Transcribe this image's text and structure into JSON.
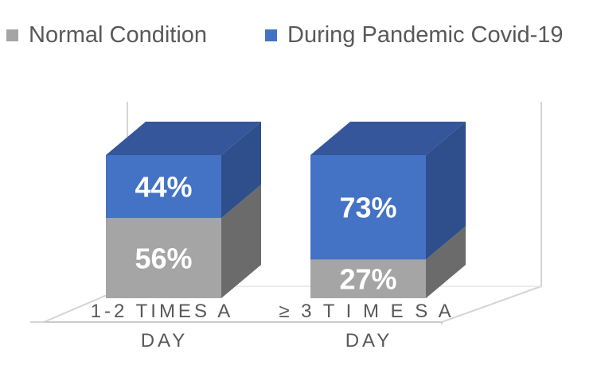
{
  "chart_data": {
    "type": "bar",
    "stacked": true,
    "percent_stacked": true,
    "three_d": true,
    "categories": [
      {
        "line1": "1-2 TIMES A",
        "line2": "DAY"
      },
      {
        "line1": "≥ 3 T I M E S A",
        "line2": "DAY"
      }
    ],
    "series": [
      {
        "name": "Normal Condition",
        "color": "#a5a5a5",
        "side_color": "#6b6b6b",
        "top_color": "#8c8c8c",
        "values": [
          56,
          27
        ],
        "labels": [
          "56%",
          "27%"
        ]
      },
      {
        "name": "During Pandemic Covid-19",
        "color": "#4472c4",
        "side_color": "#2f4f8c",
        "top_color": "#35569a",
        "values": [
          44,
          73
        ],
        "labels": [
          "44%",
          "73%"
        ]
      }
    ],
    "ylim": [
      0,
      100
    ],
    "legend_position": "top",
    "grid": false
  }
}
